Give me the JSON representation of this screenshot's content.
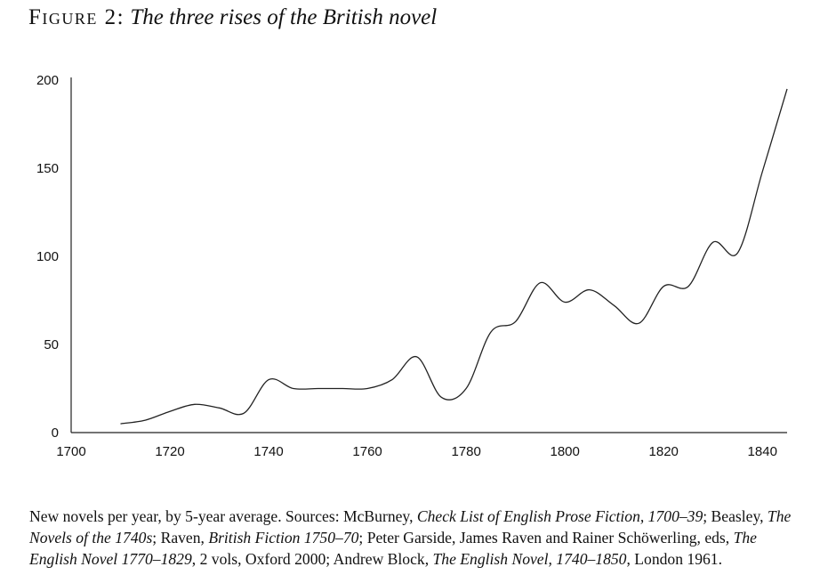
{
  "figure": {
    "label": "Figure 2:",
    "title": "The three rises of the British novel"
  },
  "caption": {
    "part1": "New novels per year, by 5-year average. Sources: McBurney, ",
    "source1": "Check List of English Prose Fiction, 1700–39",
    "part2": "; Beasley, ",
    "source2": "The Novels of the 1740s",
    "part3": "; Raven, ",
    "source3": "British Fiction 1750–70",
    "part4": "; Peter Garside, James Raven and Rainer Schöwerling, eds, ",
    "source4": "The English Novel 1770–1829",
    "part5": ", 2 vols, Oxford 2000; Andrew Block, ",
    "source5": "The English Novel, 1740–1850",
    "part6": ", London 1961."
  },
  "chart_data": {
    "type": "line",
    "title": "The three rises of the British novel",
    "xlabel": "",
    "ylabel": "",
    "xlim": [
      1700,
      1845
    ],
    "ylim": [
      0,
      200
    ],
    "x_ticks": [
      1700,
      1720,
      1740,
      1760,
      1780,
      1800,
      1820,
      1840
    ],
    "y_ticks": [
      0,
      50,
      100,
      150,
      200
    ],
    "grid": false,
    "legend": "none",
    "line_color": "#222222",
    "series": [
      {
        "name": "",
        "x": [
          1710,
          1715,
          1720,
          1725,
          1730,
          1735,
          1740,
          1745,
          1750,
          1755,
          1760,
          1765,
          1770,
          1775,
          1780,
          1785,
          1790,
          1795,
          1800,
          1805,
          1810,
          1815,
          1820,
          1825,
          1830,
          1835,
          1840,
          1845
        ],
        "y": [
          5,
          7,
          12,
          16,
          14,
          11,
          30,
          25,
          25,
          25,
          25,
          30,
          43,
          20,
          25,
          57,
          63,
          85,
          74,
          81,
          72,
          62,
          83,
          83,
          108,
          102,
          148,
          195
        ]
      }
    ]
  }
}
